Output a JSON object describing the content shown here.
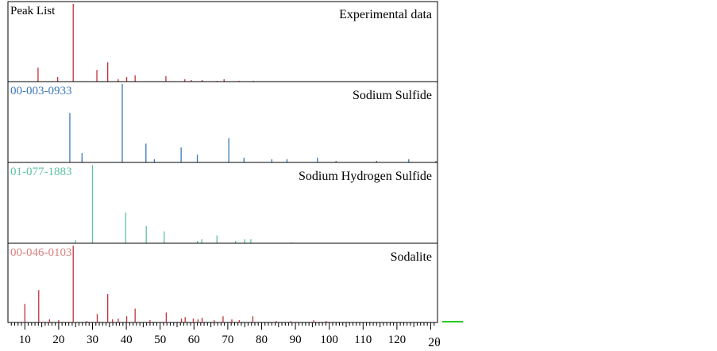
{
  "chart_data": {
    "type": "bar",
    "xlabel": "2θ",
    "xlim": [
      5,
      132
    ],
    "x_ticks": [
      "10",
      "20",
      "30",
      "40",
      "50",
      "60",
      "70",
      "80",
      "90",
      "100",
      "110",
      "120"
    ],
    "x_tick_values": [
      10,
      20,
      30,
      40,
      50,
      60,
      70,
      80,
      90,
      100,
      110,
      120
    ],
    "panels": [
      {
        "label": "Peak List",
        "title": "Experimental data",
        "color": "#c0303a",
        "ylim": [
          0,
          100
        ],
        "peaks": [
          {
            "x": 24.3,
            "y": 100
          },
          {
            "x": 13.9,
            "y": 18
          },
          {
            "x": 19.7,
            "y": 6
          },
          {
            "x": 31.3,
            "y": 15
          },
          {
            "x": 34.5,
            "y": 25
          },
          {
            "x": 37.6,
            "y": 3
          },
          {
            "x": 40.1,
            "y": 6
          },
          {
            "x": 42.6,
            "y": 8
          },
          {
            "x": 51.7,
            "y": 7
          },
          {
            "x": 57.3,
            "y": 3
          },
          {
            "x": 59.2,
            "y": 2
          },
          {
            "x": 62.4,
            "y": 2
          },
          {
            "x": 66.8,
            "y": 1
          },
          {
            "x": 68.9,
            "y": 3
          },
          {
            "x": 73.3,
            "y": 1
          },
          {
            "x": 77.6,
            "y": 1
          }
        ]
      },
      {
        "label": "00-003-0933",
        "title": "Sodium Sulfide",
        "color": "#3a78b8",
        "ylim": [
          0,
          100
        ],
        "peaks": [
          {
            "x": 23.3,
            "y": 63
          },
          {
            "x": 26.9,
            "y": 12
          },
          {
            "x": 38.8,
            "y": 100
          },
          {
            "x": 45.8,
            "y": 24
          },
          {
            "x": 48.3,
            "y": 4
          },
          {
            "x": 56.2,
            "y": 19
          },
          {
            "x": 61.0,
            "y": 10
          },
          {
            "x": 70.3,
            "y": 31
          },
          {
            "x": 74.8,
            "y": 6
          },
          {
            "x": 83.0,
            "y": 4
          },
          {
            "x": 87.5,
            "y": 4
          },
          {
            "x": 96.5,
            "y": 6
          },
          {
            "x": 102.0,
            "y": 2
          },
          {
            "x": 114.0,
            "y": 2
          },
          {
            "x": 123.5,
            "y": 4
          },
          {
            "x": 131.5,
            "y": 2
          }
        ]
      },
      {
        "label": "01-077-1883",
        "title": "Sodium Hydrogen Sulfide",
        "color": "#5cc3a0",
        "ylim": [
          0,
          100
        ],
        "peaks": [
          {
            "x": 25.0,
            "y": 4
          },
          {
            "x": 30.0,
            "y": 100
          },
          {
            "x": 39.8,
            "y": 39
          },
          {
            "x": 45.9,
            "y": 22
          },
          {
            "x": 51.2,
            "y": 15
          },
          {
            "x": 61.0,
            "y": 3
          },
          {
            "x": 62.3,
            "y": 5
          },
          {
            "x": 66.8,
            "y": 10
          },
          {
            "x": 72.3,
            "y": 3
          },
          {
            "x": 75.0,
            "y": 5
          },
          {
            "x": 76.8,
            "y": 5
          },
          {
            "x": 88.8,
            "y": 1
          }
        ]
      },
      {
        "label": "00-046-0103",
        "title": "Sodalite",
        "color": "#c0303a",
        "label_color": "#d98080",
        "ylim": [
          0,
          100
        ],
        "peaks": [
          {
            "x": 10.0,
            "y": 24
          },
          {
            "x": 14.1,
            "y": 42
          },
          {
            "x": 17.3,
            "y": 4
          },
          {
            "x": 20.0,
            "y": 3
          },
          {
            "x": 24.3,
            "y": 100
          },
          {
            "x": 28.3,
            "y": 2
          },
          {
            "x": 31.4,
            "y": 11
          },
          {
            "x": 34.5,
            "y": 37
          },
          {
            "x": 35.9,
            "y": 4
          },
          {
            "x": 37.6,
            "y": 5
          },
          {
            "x": 40.1,
            "y": 8
          },
          {
            "x": 42.6,
            "y": 18
          },
          {
            "x": 47.0,
            "y": 3
          },
          {
            "x": 51.8,
            "y": 13
          },
          {
            "x": 56.3,
            "y": 5
          },
          {
            "x": 57.4,
            "y": 7
          },
          {
            "x": 59.8,
            "y": 5
          },
          {
            "x": 61.2,
            "y": 4
          },
          {
            "x": 62.4,
            "y": 6
          },
          {
            "x": 66.0,
            "y": 3
          },
          {
            "x": 68.6,
            "y": 8
          },
          {
            "x": 71.2,
            "y": 4
          },
          {
            "x": 73.4,
            "y": 3
          },
          {
            "x": 77.4,
            "y": 8
          },
          {
            "x": 84.3,
            "y": 2
          },
          {
            "x": 88.6,
            "y": 2
          },
          {
            "x": 95.4,
            "y": 3
          },
          {
            "x": 99.1,
            "y": 2
          }
        ]
      }
    ],
    "marker_color": "#22cc22",
    "grid": false,
    "legend": "none"
  }
}
